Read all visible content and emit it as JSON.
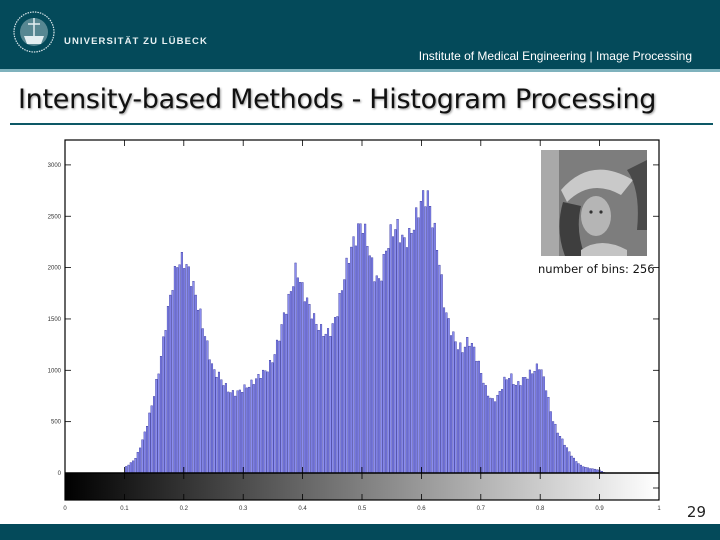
{
  "header": {
    "university": "UNIVERSITÄT ZU LÜBECK",
    "institute": "Institute of Medical Engineering | Image Processing",
    "logo_icon": "university-seal-icon"
  },
  "slide": {
    "title": "Intensity-based Methods - Histogram Processing",
    "page_number": "29",
    "inset_caption": "number of bins: 256",
    "inset_image": "grayscale-portrait-image"
  },
  "colors": {
    "header_bg": "#044a5a",
    "header_accent": "#7fb2bd",
    "bar_fill": "#8a8cf0",
    "bar_edge": "#1a1a8c",
    "title_rule": "#0d5866"
  },
  "chart_data": {
    "type": "bar",
    "title": "",
    "xlabel": "",
    "ylabel": "",
    "bins": 256,
    "xlim": [
      0,
      1
    ],
    "ylim": [
      -250,
      3250
    ],
    "grid": false,
    "legend": null,
    "colorbar": "grayscale gradient (black to white) below y=0",
    "xticks": [
      "0",
      "0.1",
      "0.2",
      "0.3",
      "0.4",
      "0.5",
      "0.6",
      "0.7",
      "0.8",
      "0.9",
      "1"
    ],
    "yticks": [
      "0",
      "500",
      "1000",
      "1500",
      "2000",
      "2500",
      "3000"
    ],
    "x": [
      0.1,
      0.11,
      0.12,
      0.13,
      0.14,
      0.15,
      0.16,
      0.17,
      0.18,
      0.19,
      0.2,
      0.21,
      0.22,
      0.23,
      0.24,
      0.25,
      0.26,
      0.27,
      0.28,
      0.29,
      0.3,
      0.31,
      0.32,
      0.33,
      0.34,
      0.35,
      0.36,
      0.37,
      0.38,
      0.39,
      0.4,
      0.41,
      0.42,
      0.43,
      0.44,
      0.45,
      0.46,
      0.47,
      0.48,
      0.49,
      0.5,
      0.51,
      0.52,
      0.53,
      0.54,
      0.55,
      0.56,
      0.57,
      0.58,
      0.59,
      0.6,
      0.61,
      0.62,
      0.63,
      0.64,
      0.65,
      0.66,
      0.67,
      0.68,
      0.69,
      0.7,
      0.71,
      0.72,
      0.73,
      0.74,
      0.75,
      0.76,
      0.77,
      0.78,
      0.79,
      0.8,
      0.81,
      0.82,
      0.83,
      0.84,
      0.85,
      0.86,
      0.87,
      0.88,
      0.89,
      0.9,
      0.91
    ],
    "values": [
      50,
      90,
      150,
      300,
      500,
      750,
      1050,
      1450,
      1800,
      2050,
      2080,
      1950,
      1750,
      1500,
      1250,
      1000,
      950,
      850,
      780,
      780,
      820,
      850,
      900,
      960,
      1000,
      1100,
      1300,
      1550,
      1750,
      2000,
      1800,
      1650,
      1500,
      1400,
      1350,
      1400,
      1600,
      1900,
      2150,
      2300,
      2450,
      2250,
      1950,
      1850,
      2150,
      2350,
      2400,
      2250,
      2300,
      2450,
      2650,
      2720,
      2450,
      2100,
      1600,
      1400,
      1250,
      1200,
      1300,
      1200,
      1000,
      800,
      700,
      750,
      900,
      950,
      850,
      900,
      950,
      1000,
      1050,
      850,
      550,
      400,
      300,
      200,
      120,
      70,
      50,
      40,
      30,
      0
    ]
  }
}
